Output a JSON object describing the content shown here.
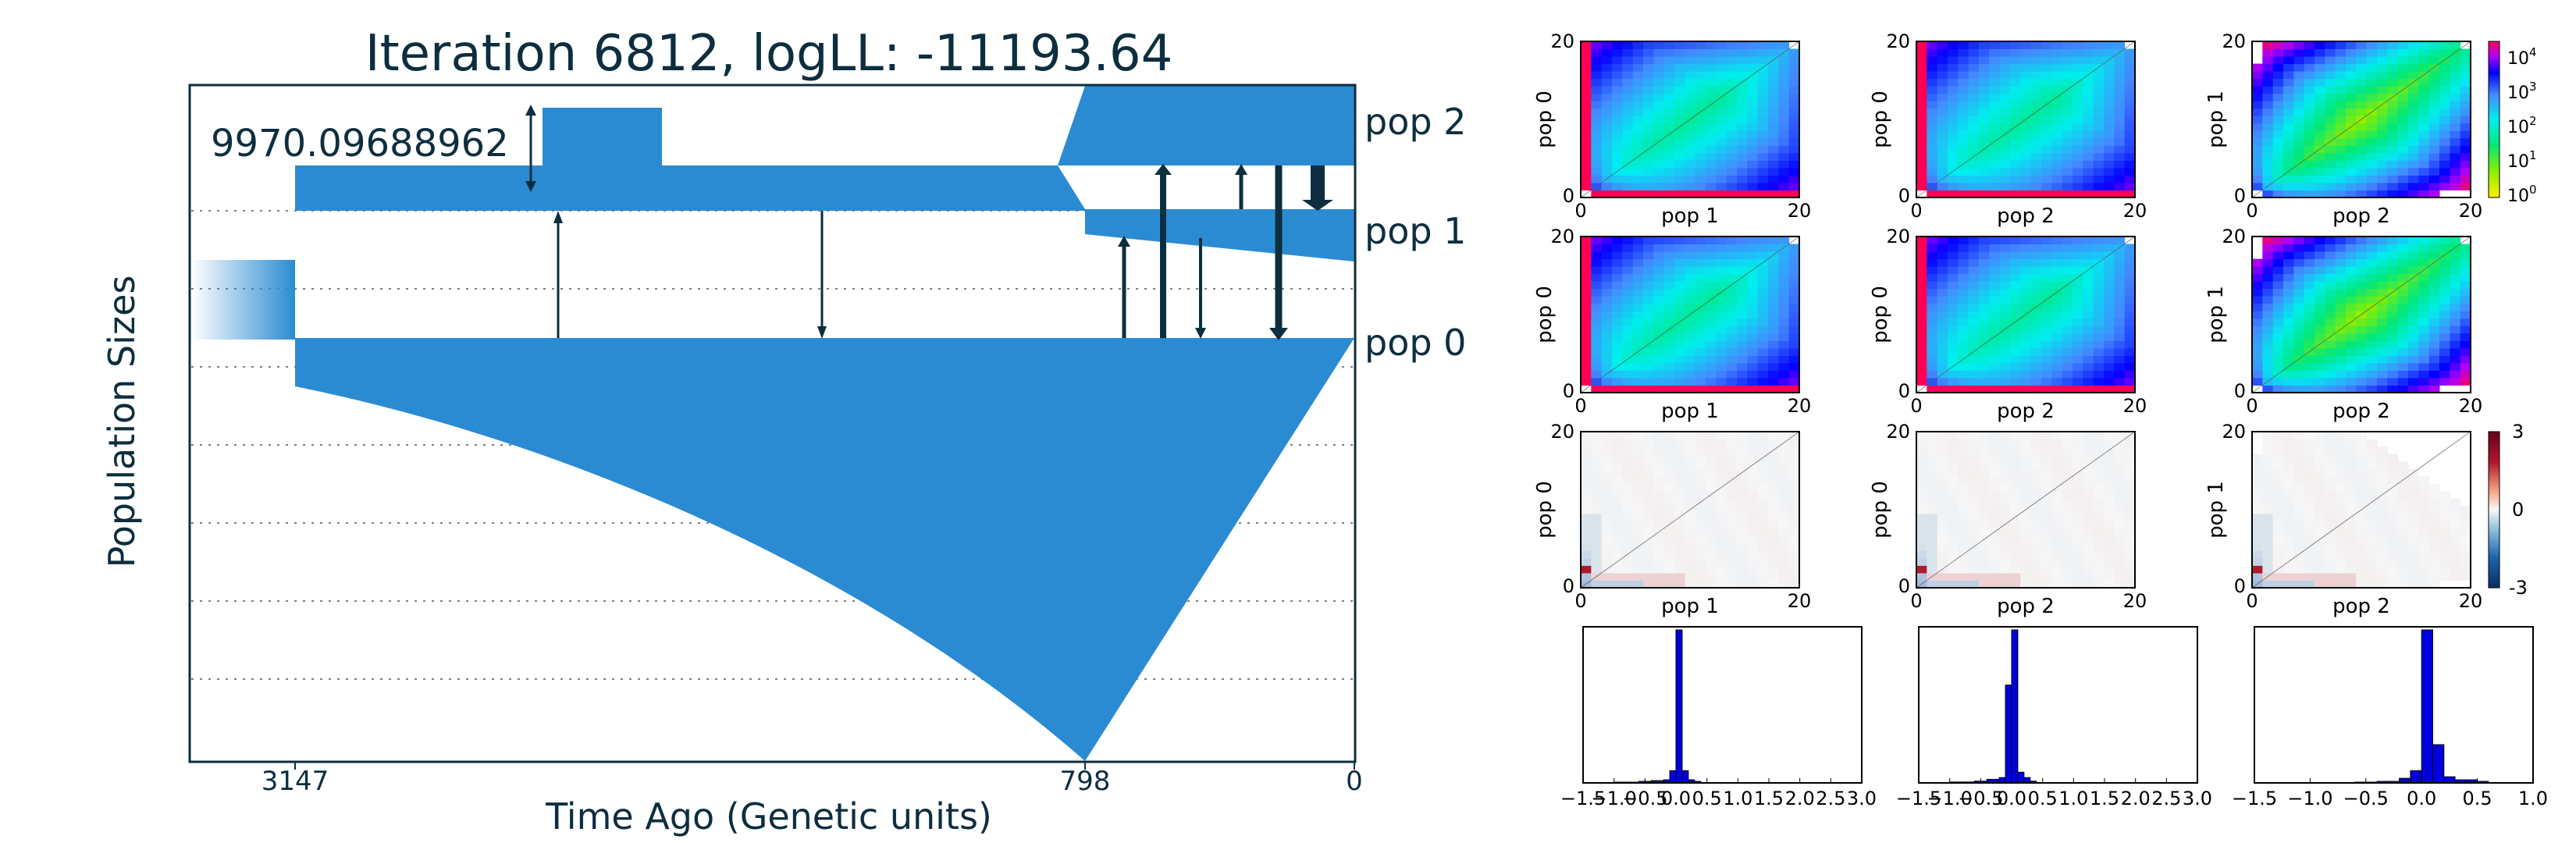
{
  "chart_data": {
    "demography": {
      "type": "demography",
      "title": "Iteration 6812, logLL:  -11193.64",
      "xlabel": "Time Ago (Genetic units)",
      "ylabel": "Population Sizes",
      "x_ticks": [
        {
          "value": 3147,
          "label": "3147"
        },
        {
          "value": 798,
          "label": "798"
        },
        {
          "value": 0,
          "label": "0"
        }
      ],
      "scale_label": "9970.09688962",
      "populations": [
        {
          "name": "pop 0",
          "label": "pop 0"
        },
        {
          "name": "pop 1",
          "label": "pop 1"
        },
        {
          "name": "pop 2",
          "label": "pop 2"
        }
      ],
      "colors": {
        "population": "#2b8bd2",
        "ink": "#0d2e3f",
        "grid": "#808080"
      }
    },
    "sfs_panels": [
      {
        "xlabel": "pop 1",
        "ylabel": "pop 0",
        "x_ticks": [
          "0",
          "20"
        ],
        "y_ticks": [
          "0",
          "20"
        ],
        "kind": "observed"
      },
      {
        "xlabel": "pop 2",
        "ylabel": "pop 0",
        "x_ticks": [
          "0",
          "20"
        ],
        "y_ticks": [
          "0",
          "20"
        ],
        "kind": "observed"
      },
      {
        "xlabel": "pop 2",
        "ylabel": "pop 1",
        "x_ticks": [
          "0",
          "20"
        ],
        "y_ticks": [
          "0",
          "20"
        ],
        "kind": "observed"
      },
      {
        "xlabel": "pop 1",
        "ylabel": "pop 0",
        "x_ticks": [
          "0",
          "20"
        ],
        "y_ticks": [
          "0",
          "20"
        ],
        "kind": "model"
      },
      {
        "xlabel": "pop 2",
        "ylabel": "pop 0",
        "x_ticks": [
          "0",
          "20"
        ],
        "y_ticks": [
          "0",
          "20"
        ],
        "kind": "model"
      },
      {
        "xlabel": "pop 2",
        "ylabel": "pop 1",
        "x_ticks": [
          "0",
          "20"
        ],
        "y_ticks": [
          "0",
          "20"
        ],
        "kind": "model"
      },
      {
        "xlabel": "pop 1",
        "ylabel": "pop 0",
        "x_ticks": [
          "0",
          "20"
        ],
        "y_ticks": [
          "0",
          "20"
        ],
        "kind": "residual"
      },
      {
        "xlabel": "pop 2",
        "ylabel": "pop 0",
        "x_ticks": [
          "0",
          "20"
        ],
        "y_ticks": [
          "0",
          "20"
        ],
        "kind": "residual"
      },
      {
        "xlabel": "pop 2",
        "ylabel": "pop 1",
        "x_ticks": [
          "0",
          "20"
        ],
        "y_ticks": [
          "0",
          "20"
        ],
        "kind": "residual"
      }
    ],
    "colorbar_top": {
      "type": "log",
      "ticks": [
        "10^4",
        "10^3",
        "10^2",
        "10^1",
        "10^0"
      ]
    },
    "colorbar_residual": {
      "type": "diverging",
      "ticks": [
        "3",
        "0",
        "-3"
      ],
      "range": [
        -3,
        3
      ]
    },
    "histograms": [
      {
        "type": "bar",
        "x_ticks": [
          "−1.5",
          "−1.0",
          "−0.5",
          "0.0",
          "0.5",
          "1.0",
          "1.5",
          "2.0",
          "2.5",
          "3.0"
        ],
        "xlim": [
          -1.5,
          3.0
        ],
        "bin_edges": [
          -1.0,
          -0.8,
          -0.6,
          -0.4,
          -0.2,
          -0.1,
          0.0,
          0.1,
          0.2,
          0.3,
          0.4
        ],
        "counts": [
          0.005,
          0.005,
          0.01,
          0.015,
          0.02,
          0.08,
          1.0,
          0.08,
          0.02,
          0.01
        ]
      },
      {
        "type": "bar",
        "x_ticks": [
          "−1.5",
          "−1.0",
          "−0.5",
          "0.0",
          "0.5",
          "1.0",
          "1.5",
          "2.0",
          "2.5",
          "3.0"
        ],
        "xlim": [
          -1.5,
          3.0
        ],
        "bin_edges": [
          -1.0,
          -0.8,
          -0.6,
          -0.4,
          -0.2,
          -0.1,
          0.0,
          0.1,
          0.2,
          0.3,
          0.4
        ],
        "counts": [
          0.005,
          0.005,
          0.01,
          0.02,
          0.03,
          0.55,
          0.86,
          0.06,
          0.03,
          0.01
        ]
      },
      {
        "type": "bar",
        "x_ticks": [
          "−1.5",
          "−1.0",
          "−0.5",
          "0.0",
          "0.5",
          "1.0"
        ],
        "xlim": [
          -1.5,
          1.0
        ],
        "bin_edges": [
          -0.6,
          -0.4,
          -0.2,
          -0.1,
          0.0,
          0.1,
          0.2,
          0.3,
          0.4,
          0.5,
          0.6
        ],
        "counts": [
          0.005,
          0.01,
          0.03,
          0.08,
          1.0,
          0.25,
          0.04,
          0.02,
          0.02,
          0.01
        ]
      }
    ]
  }
}
